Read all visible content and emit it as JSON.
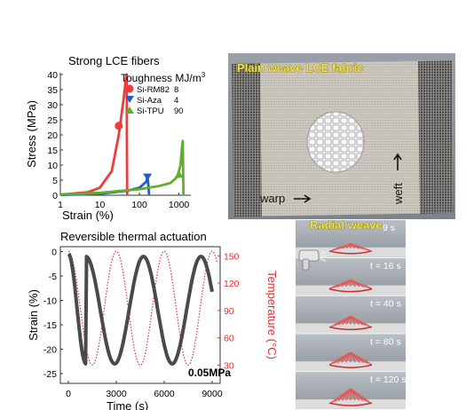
{
  "chart_data": [
    {
      "type": "line",
      "title": "Strong LCE fibers",
      "xlabel": "Strain (%)",
      "ylabel": "Stress (MPa)",
      "xscale": "log",
      "xlim": [
        1,
        2000
      ],
      "ylim": [
        0,
        40
      ],
      "xticks": [
        "1",
        "10",
        "100",
        "1000"
      ],
      "yticks": [
        "0",
        "5",
        "10",
        "15",
        "20",
        "25",
        "30",
        "35",
        "40"
      ],
      "legend_title": "Toughness MJ/m",
      "legend_title_sup": "3",
      "legend_placement": "top-right",
      "series": [
        {
          "name": "Si-RM82",
          "toughness": "8",
          "color": "#ee3b3b",
          "marker": "circle",
          "x": [
            1,
            5,
            10,
            20,
            30,
            40,
            45,
            48,
            48,
            49
          ],
          "y": [
            0.2,
            1,
            2.5,
            8,
            20,
            32,
            38,
            40,
            20,
            0
          ]
        },
        {
          "name": "Si-Aza",
          "toughness": "4",
          "color": "#1f5fbf",
          "marker": "triangle-down",
          "x": [
            1,
            10,
            50,
            100,
            150,
            160,
            170,
            175
          ],
          "y": [
            0.1,
            0.5,
            1.5,
            2.5,
            4.5,
            6,
            3,
            0
          ]
        },
        {
          "name": "Si-TPU",
          "toughness": "90",
          "color": "#5fae2e",
          "marker": "triangle-up",
          "x": [
            1,
            10,
            100,
            300,
            600,
            900,
            1100,
            1200,
            1250,
            1300
          ],
          "y": [
            0.2,
            0.8,
            2,
            3,
            4,
            6,
            10,
            16,
            18,
            0
          ]
        }
      ]
    },
    {
      "type": "line",
      "title": "Reversible thermal actuation",
      "xlabel": "Time (s)",
      "ylabel": "Strain (%)",
      "y2label": "Temperature (°C)",
      "annotation": "0.05MPa",
      "xlim": [
        -500,
        9500
      ],
      "ylim": [
        -27,
        1
      ],
      "y2lim": [
        10,
        160
      ],
      "xticks": [
        "0",
        "3000",
        "6000",
        "9000"
      ],
      "yticks": [
        "0",
        "-5",
        "-10",
        "-15",
        "-20",
        "-25"
      ],
      "y2ticks": [
        "30",
        "60",
        "90",
        "120",
        "150"
      ],
      "series": [
        {
          "name": "Strain",
          "axis": "left",
          "color": "#4a4a4a",
          "style": "solid"
        },
        {
          "name": "Temperature",
          "axis": "right",
          "color": "#e03030",
          "style": "dotted"
        }
      ]
    }
  ],
  "photos": {
    "plain_weave": {
      "title": "Plain weave LCE fabric",
      "warp": "warp",
      "weft": "weft"
    },
    "radial_weave": {
      "title": "Radial weave",
      "frames": [
        "9 s",
        "t = 16 s",
        "t = 40 s",
        "t = 80 s",
        "t = 120 s"
      ]
    }
  },
  "colors": {
    "red": "#ee3b3b",
    "blue": "#1f5fbf",
    "green": "#5fae2e",
    "fabric": "#cfcac2",
    "photo_bg": "#8a8f96"
  }
}
